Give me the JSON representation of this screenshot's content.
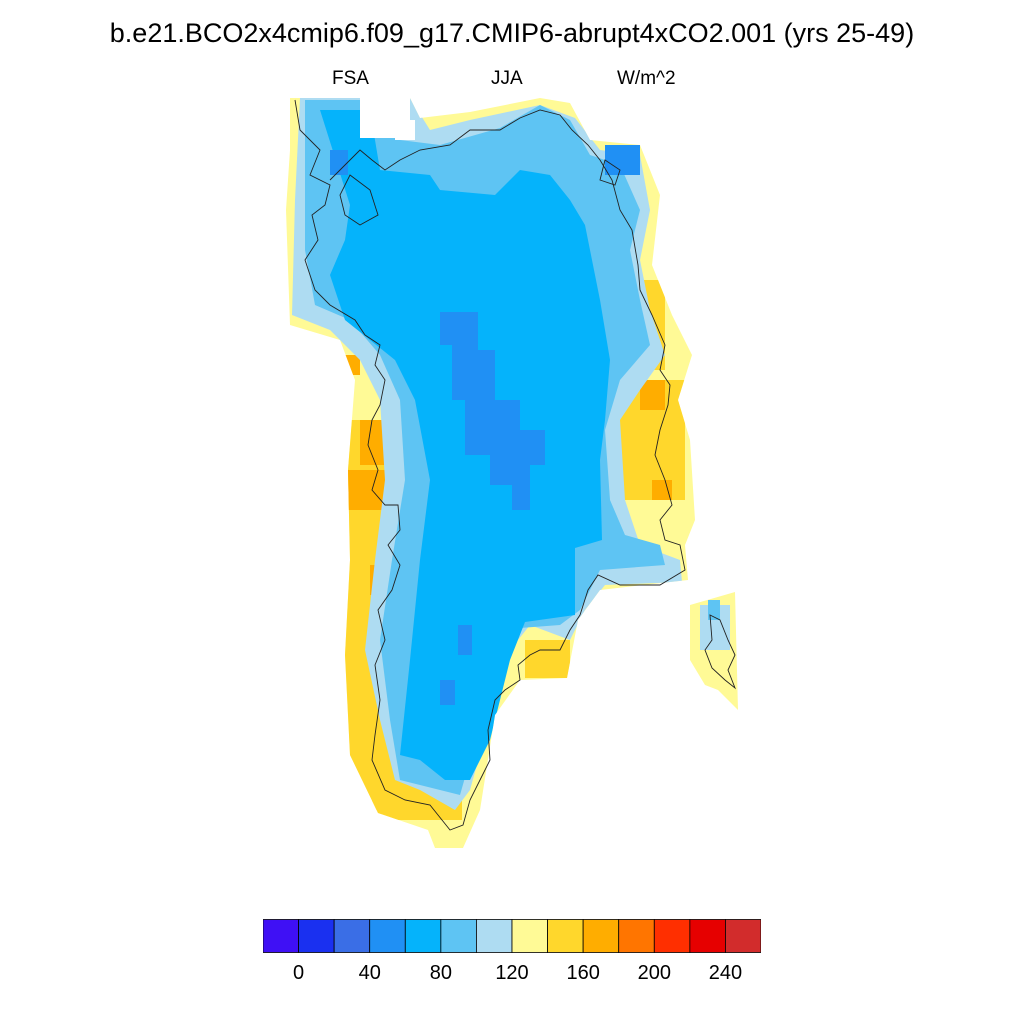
{
  "title": "b.e21.BCO2x4cmip6.f09_g17.CMIP6-abrupt4xCO2.001 (yrs 25-49)",
  "subtitle": {
    "left": "FSA",
    "center": "JJA",
    "right": "W/m^2"
  },
  "colorbar": {
    "colors": [
      "#3f10f5",
      "#1a30f0",
      "#3a6ee6",
      "#2090f4",
      "#05b3fb",
      "#5ec4f3",
      "#aedcf2",
      "#fffa96",
      "#ffd72c",
      "#ffad00",
      "#ff7500",
      "#ff2f00",
      "#e60000",
      "#d22c2c"
    ],
    "labels": [
      "0",
      "40",
      "80",
      "120",
      "160",
      "200",
      "240"
    ],
    "label_values": [
      0,
      40,
      80,
      120,
      160,
      200,
      240
    ],
    "levels": [
      0,
      20,
      40,
      60,
      80,
      100,
      120,
      140,
      160,
      180,
      200,
      220,
      240
    ]
  },
  "chart_data": {
    "type": "heatmap",
    "variable": "FSA",
    "season": "JJA",
    "units": "W/m^2",
    "region": "Greenland",
    "value_classes": [
      {
        "class": 4,
        "range": "80-100",
        "color": "#05b3fb",
        "description": "interior ice sheet"
      },
      {
        "class": 3,
        "range": "60-80",
        "color": "#2090f4",
        "description": "central ridge and northeast corner"
      },
      {
        "class": 5,
        "range": "100-120",
        "color": "#5ec4f3",
        "description": "ice margin"
      },
      {
        "class": 6,
        "range": "120-140",
        "color": "#aedcf2",
        "description": "outer ice margin"
      },
      {
        "class": 7,
        "range": "140-160",
        "color": "#fffa96",
        "description": "coastal strip"
      },
      {
        "class": 8,
        "range": "160-180",
        "color": "#ffd72c",
        "description": "southwest and east coast"
      },
      {
        "class": 9,
        "range": "180-200",
        "color": "#ffad00",
        "description": "west and east coastal patches"
      }
    ]
  }
}
